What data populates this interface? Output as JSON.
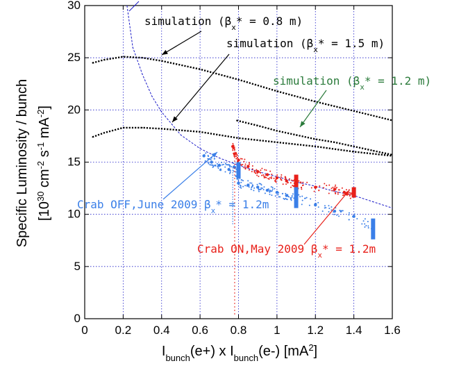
{
  "chart_data": {
    "type": "scatter",
    "title": "",
    "xlabel": {
      "parts": [
        {
          "t": "I",
          "s": ""
        },
        {
          "t": "bunch",
          "s": "sub"
        },
        {
          "t": "(e+) x I",
          "s": ""
        },
        {
          "t": "bunch",
          "s": "sub"
        },
        {
          "t": "(e-) [mA",
          "s": ""
        },
        {
          "t": "2",
          "s": "sup"
        },
        {
          "t": "]",
          "s": ""
        }
      ]
    },
    "ylabel": {
      "line1": "Specific Luminosity / bunch",
      "line2": [
        {
          "t": "[10",
          "s": ""
        },
        {
          "t": "30",
          "s": "sup"
        },
        {
          "t": " cm",
          "s": ""
        },
        {
          "t": "-2",
          "s": "sup"
        },
        {
          "t": " s",
          "s": ""
        },
        {
          "t": "-1",
          "s": "sup"
        },
        {
          "t": " mA",
          "s": ""
        },
        {
          "t": "-2",
          "s": "sup"
        },
        {
          "t": "]",
          "s": ""
        }
      ]
    },
    "xlim": [
      0,
      1.6
    ],
    "ylim": [
      0,
      30
    ],
    "xticks": [
      "0",
      "0.2",
      "0.4",
      "0.6",
      "0.8",
      "1",
      "1.2",
      "1.4",
      "1.6"
    ],
    "yticks": [
      "0",
      "5",
      "10",
      "15",
      "20",
      "25",
      "30"
    ],
    "grid": true,
    "colors": {
      "blue": "#3a7fe8",
      "red": "#e8201a",
      "green": "#2a7a3a",
      "navy": "#1a1ac8",
      "black": "#000000"
    },
    "series": [
      {
        "label_parts": [
          {
            "t": "simulation (β",
            "s": ""
          },
          {
            "t": "x",
            "s": "sub"
          },
          {
            "t": "* = 0.8 m)",
            "s": ""
          }
        ],
        "style": "dashed-blue",
        "x": [
          0.22,
          0.25,
          0.3,
          0.35,
          0.4,
          0.5,
          0.6,
          0.7,
          0.8,
          0.9,
          1.0,
          1.1,
          1.2,
          1.3,
          1.4,
          1.5,
          1.6
        ],
        "y": [
          30.0,
          26.0,
          23.4,
          21.3,
          19.8,
          17.6,
          16.3,
          15.4,
          14.7,
          14.1,
          13.6,
          13.1,
          12.7,
          12.2,
          11.8,
          11.2,
          10.6
        ]
      },
      {
        "label_parts": [
          {
            "t": "simulation (β",
            "s": ""
          },
          {
            "t": "x",
            "s": "sub"
          },
          {
            "t": "* = 1.5 m)",
            "s": ""
          }
        ],
        "style": "dotted-black",
        "x": [
          0.04,
          0.1,
          0.2,
          0.3,
          0.4,
          0.6,
          0.8,
          1.0,
          1.2,
          1.4,
          1.6
        ],
        "y": [
          24.5,
          24.8,
          25.1,
          25.0,
          24.7,
          23.9,
          22.9,
          21.8,
          20.8,
          19.9,
          19.0
        ]
      },
      {
        "label_parts": [
          {
            "t": "simulation (β",
            "s": ""
          },
          {
            "t": "x",
            "s": "sub"
          },
          {
            "t": "* = 1.2 m)",
            "s": ""
          }
        ],
        "style": "dotted-black",
        "x": [
          0.04,
          0.1,
          0.2,
          0.3,
          0.4,
          0.6,
          0.7,
          0.8,
          1.0,
          1.2,
          1.4,
          1.6
        ],
        "y": [
          17.4,
          17.8,
          18.3,
          18.3,
          18.2,
          17.9,
          17.6,
          17.3,
          16.9,
          16.5,
          16.0,
          15.6
        ]
      },
      {
        "label_parts": [],
        "style": "dotted-black",
        "x": [
          0.79,
          0.9,
          1.0,
          1.1,
          1.2,
          1.3,
          1.4,
          1.5,
          1.6
        ],
        "y": [
          19.0,
          18.5,
          18.0,
          17.6,
          17.2,
          16.9,
          16.5,
          16.1,
          15.7
        ]
      },
      {
        "label_parts": [
          {
            "t": "Crab ON,May 2009 β",
            "s": ""
          },
          {
            "t": "x",
            "s": "sub"
          },
          {
            "t": "* = 1.2m",
            "s": ""
          }
        ],
        "style": "scatter-red",
        "x": [
          0.77,
          0.78,
          0.8,
          0.85,
          0.9,
          0.95,
          1.0,
          1.05,
          1.1,
          1.2,
          1.3,
          1.35,
          1.4
        ],
        "y": [
          16.5,
          15.8,
          15.2,
          14.6,
          14.1,
          13.8,
          13.5,
          13.2,
          12.8,
          12.6,
          12.4,
          12.1,
          11.9
        ]
      },
      {
        "label_parts": [
          {
            "t": "Crab OFF,June 2009 β",
            "s": ""
          },
          {
            "t": "x",
            "s": "sub"
          },
          {
            "t": "* = 1.2m",
            "s": ""
          }
        ],
        "style": "scatter-blue",
        "x": [
          0.62,
          0.66,
          0.7,
          0.75,
          0.78,
          0.8,
          0.85,
          0.9,
          0.95,
          1.0,
          1.05,
          1.1,
          1.2,
          1.3,
          1.4,
          1.5
        ],
        "y": [
          15.6,
          15.0,
          14.7,
          14.3,
          14.5,
          13.0,
          12.8,
          12.6,
          12.3,
          12.1,
          11.8,
          11.6,
          10.9,
          10.3,
          9.8,
          8.8
        ]
      }
    ]
  }
}
